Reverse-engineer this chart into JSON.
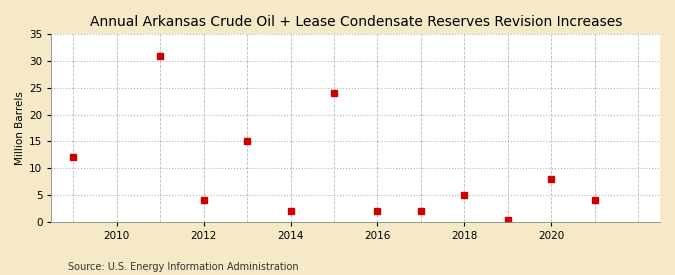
{
  "title": "Annual Arkansas Crude Oil + Lease Condensate Reserves Revision Increases",
  "ylabel": "Million Barrels",
  "source": "Source: U.S. Energy Information Administration",
  "years": [
    2009,
    2011,
    2012,
    2013,
    2014,
    2015,
    2016,
    2017,
    2018,
    2019,
    2020,
    2021
  ],
  "values": [
    12,
    31,
    4,
    15,
    2,
    24,
    2,
    2,
    5,
    0.3,
    8,
    4
  ],
  "marker_color": "#cc0000",
  "marker_size": 5,
  "xlim": [
    2008.5,
    2022.5
  ],
  "ylim": [
    0,
    35
  ],
  "yticks": [
    0,
    5,
    10,
    15,
    20,
    25,
    30,
    35
  ],
  "xticks_major": [
    2010,
    2012,
    2014,
    2016,
    2018,
    2020
  ],
  "xticks_all": [
    2009,
    2010,
    2011,
    2012,
    2013,
    2014,
    2015,
    2016,
    2017,
    2018,
    2019,
    2020,
    2021,
    2022
  ],
  "figure_bg": "#f5e9c8",
  "axes_bg": "#ffffff",
  "grid_color": "#aaaaaa",
  "title_fontsize": 10,
  "label_fontsize": 7.5,
  "tick_fontsize": 7.5,
  "source_fontsize": 7
}
